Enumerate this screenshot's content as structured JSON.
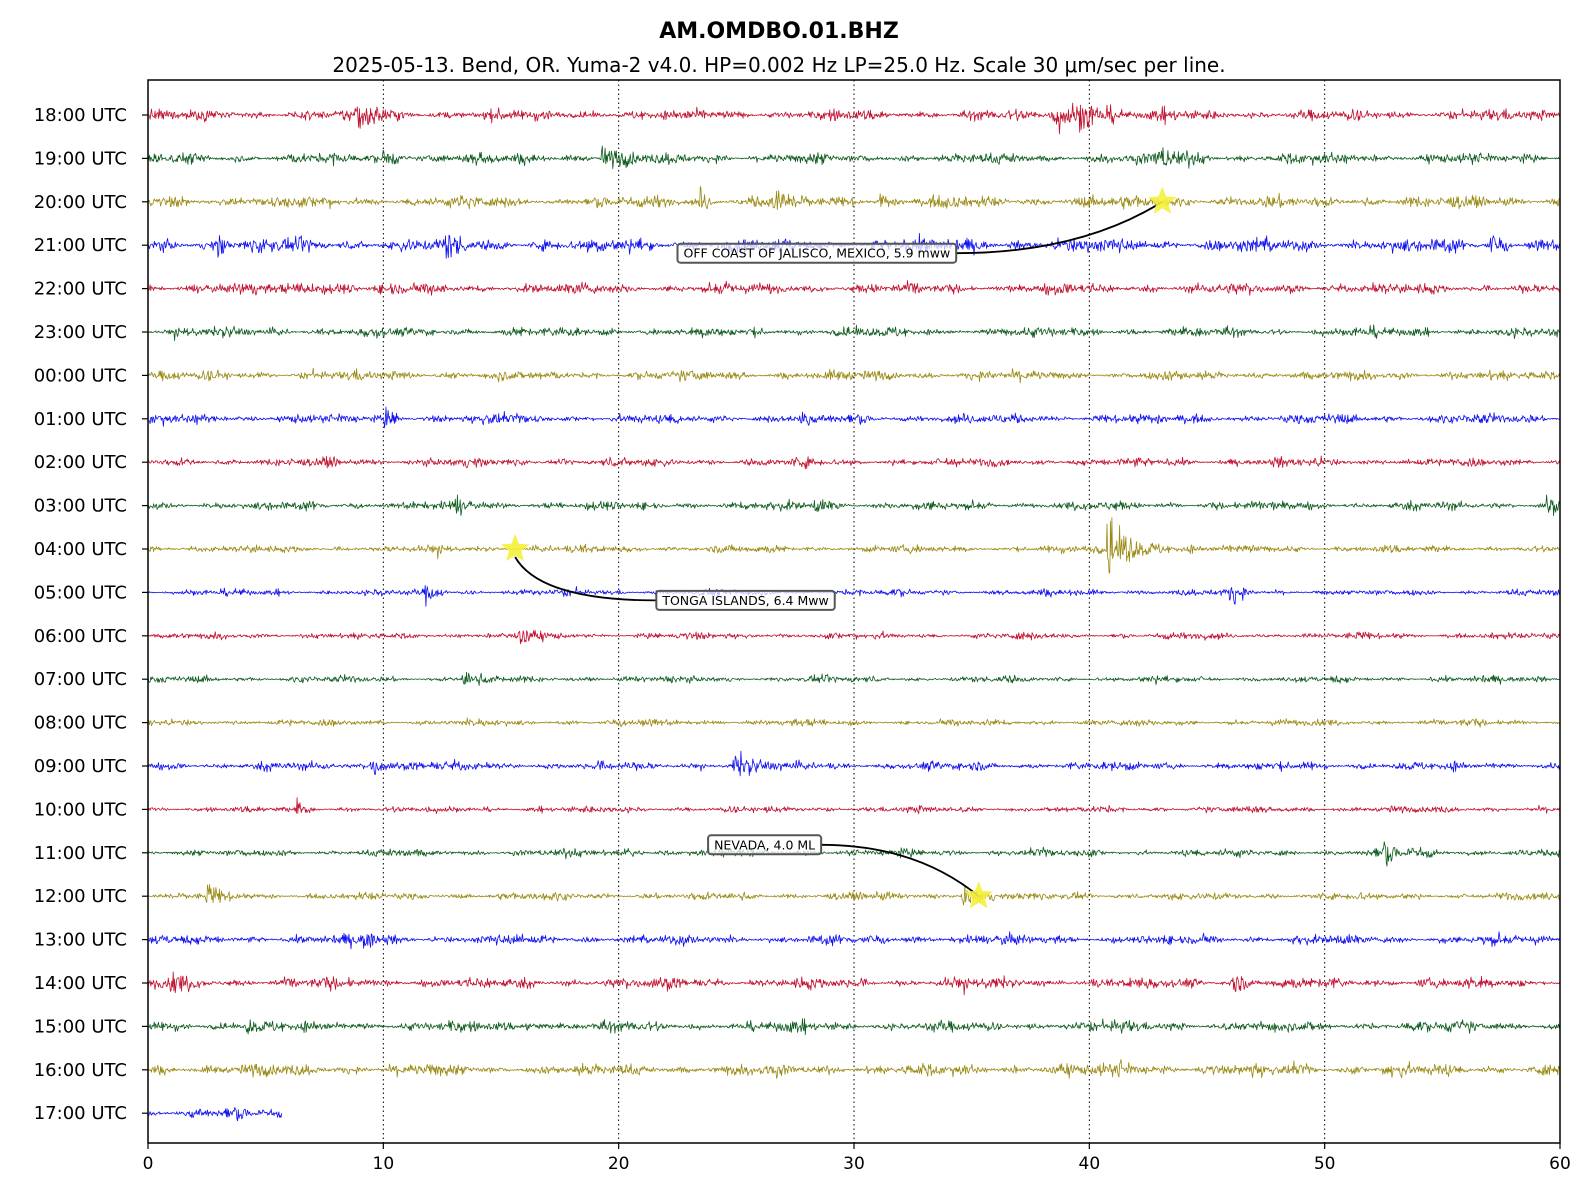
{
  "title": "AM.OMDBO.01.BHZ",
  "subtitle": "2025-05-13. Bend, OR. Yuma-2 v4.0. HP=0.002 Hz LP=25.0 Hz. Scale 30 μm/sec per line.",
  "colors": {
    "red": "#c0102e",
    "green": "#0f5c1f",
    "olive": "#9a8a14",
    "blue": "#1010f0",
    "star": "#f4f03a"
  },
  "chart_data": {
    "type": "line",
    "x_ticks": [
      "0",
      "10",
      "20",
      "30",
      "40",
      "50",
      "60"
    ],
    "xlim": [
      0,
      60
    ],
    "grid": "dotted vertical lines at 10-minute intervals",
    "color_cycle": [
      "red",
      "green",
      "olive",
      "blue"
    ],
    "rows": [
      {
        "label": "18:00 UTC",
        "color": "red",
        "end": 60,
        "amp": 1.0
      },
      {
        "label": "19:00 UTC",
        "color": "green",
        "end": 60,
        "amp": 1.0
      },
      {
        "label": "20:00 UTC",
        "color": "olive",
        "end": 60,
        "amp": 1.1
      },
      {
        "label": "21:00 UTC",
        "color": "blue",
        "end": 60,
        "amp": 1.3
      },
      {
        "label": "22:00 UTC",
        "color": "red",
        "end": 60,
        "amp": 1.0
      },
      {
        "label": "23:00 UTC",
        "color": "green",
        "end": 60,
        "amp": 0.9
      },
      {
        "label": "00:00 UTC",
        "color": "olive",
        "end": 60,
        "amp": 0.9
      },
      {
        "label": "01:00 UTC",
        "color": "blue",
        "end": 60,
        "amp": 0.9
      },
      {
        "label": "02:00 UTC",
        "color": "red",
        "end": 60,
        "amp": 0.8
      },
      {
        "label": "03:00 UTC",
        "color": "green",
        "end": 60,
        "amp": 0.8
      },
      {
        "label": "04:00 UTC",
        "color": "olive",
        "end": 60,
        "amp": 0.7
      },
      {
        "label": "05:00 UTC",
        "color": "blue",
        "end": 60,
        "amp": 0.6
      },
      {
        "label": "06:00 UTC",
        "color": "red",
        "end": 60,
        "amp": 0.6
      },
      {
        "label": "07:00 UTC",
        "color": "green",
        "end": 60,
        "amp": 0.6
      },
      {
        "label": "08:00 UTC",
        "color": "olive",
        "end": 60,
        "amp": 0.6
      },
      {
        "label": "09:00 UTC",
        "color": "blue",
        "end": 60,
        "amp": 0.8
      },
      {
        "label": "10:00 UTC",
        "color": "red",
        "end": 60,
        "amp": 0.6
      },
      {
        "label": "11:00 UTC",
        "color": "green",
        "end": 60,
        "amp": 0.7
      },
      {
        "label": "12:00 UTC",
        "color": "olive",
        "end": 60,
        "amp": 0.7
      },
      {
        "label": "13:00 UTC",
        "color": "blue",
        "end": 60,
        "amp": 0.9
      },
      {
        "label": "14:00 UTC",
        "color": "red",
        "end": 60,
        "amp": 1.0
      },
      {
        "label": "15:00 UTC",
        "color": "green",
        "end": 60,
        "amp": 1.0
      },
      {
        "label": "16:00 UTC",
        "color": "olive",
        "end": 60,
        "amp": 1.1
      },
      {
        "label": "17:00 UTC",
        "color": "blue",
        "end": 5.7,
        "amp": 1.0
      }
    ],
    "bursts": [
      {
        "row": 0,
        "t": 8.8,
        "amp": 2.6,
        "len": 1.0
      },
      {
        "row": 0,
        "t": 38.5,
        "amp": 3.0,
        "len": 1.5
      },
      {
        "row": 0,
        "t": 39.6,
        "amp": 2.2,
        "len": 0.8
      },
      {
        "row": 1,
        "t": 10.0,
        "amp": 1.6,
        "len": 0.6
      },
      {
        "row": 1,
        "t": 19.3,
        "amp": 2.2,
        "len": 0.7
      },
      {
        "row": 1,
        "t": 42.8,
        "amp": 1.8,
        "len": 1.2
      },
      {
        "row": 2,
        "t": 23.4,
        "amp": 2.8,
        "len": 0.3
      },
      {
        "row": 2,
        "t": 26.5,
        "amp": 2.2,
        "len": 0.6
      },
      {
        "row": 2,
        "t": 31.1,
        "amp": 2.5,
        "len": 0.3
      },
      {
        "row": 3,
        "t": 3.0,
        "amp": 2.8,
        "len": 0.2
      },
      {
        "row": 3,
        "t": 12.5,
        "amp": 1.8,
        "len": 0.6
      },
      {
        "row": 3,
        "t": 57.0,
        "amp": 2.6,
        "len": 0.4
      },
      {
        "row": 4,
        "t": 6.5,
        "amp": 1.6,
        "len": 1.2
      },
      {
        "row": 7,
        "t": 10.1,
        "amp": 1.6,
        "len": 0.4
      },
      {
        "row": 7,
        "t": 27.8,
        "amp": 1.6,
        "len": 0.4
      },
      {
        "row": 9,
        "t": 13.1,
        "amp": 1.4,
        "len": 0.4
      },
      {
        "row": 9,
        "t": 28.3,
        "amp": 1.5,
        "len": 0.6
      },
      {
        "row": 9,
        "t": 59.4,
        "amp": 1.8,
        "len": 0.4
      },
      {
        "row": 10,
        "t": 40.8,
        "amp": 7.5,
        "len": 0.5
      },
      {
        "row": 10,
        "t": 41.5,
        "amp": 2.0,
        "len": 1.5
      },
      {
        "row": 11,
        "t": 11.8,
        "amp": 1.8,
        "len": 0.5
      },
      {
        "row": 11,
        "t": 46.0,
        "amp": 2.0,
        "len": 0.4
      },
      {
        "row": 12,
        "t": 15.8,
        "amp": 1.8,
        "len": 0.5
      },
      {
        "row": 13,
        "t": 13.4,
        "amp": 1.6,
        "len": 0.5
      },
      {
        "row": 15,
        "t": 9.5,
        "amp": 2.2,
        "len": 0.6
      },
      {
        "row": 15,
        "t": 24.9,
        "amp": 2.4,
        "len": 0.8
      },
      {
        "row": 16,
        "t": 6.3,
        "amp": 1.8,
        "len": 0.3
      },
      {
        "row": 17,
        "t": 20.3,
        "amp": 1.8,
        "len": 0.4
      },
      {
        "row": 17,
        "t": 52.5,
        "amp": 1.6,
        "len": 1.2
      },
      {
        "row": 18,
        "t": 2.5,
        "amp": 2.2,
        "len": 0.4
      },
      {
        "row": 18,
        "t": 34.6,
        "amp": 2.0,
        "len": 0.7
      },
      {
        "row": 19,
        "t": 9.2,
        "amp": 1.8,
        "len": 0.5
      },
      {
        "row": 20,
        "t": 1.0,
        "amp": 2.0,
        "len": 0.5
      },
      {
        "row": 20,
        "t": 46.0,
        "amp": 1.8,
        "len": 0.5
      },
      {
        "row": 21,
        "t": 4.2,
        "amp": 1.5,
        "len": 0.4
      },
      {
        "row": 21,
        "t": 16.1,
        "amp": 1.6,
        "len": 0.4
      },
      {
        "row": 22,
        "t": 41.2,
        "amp": 1.6,
        "len": 0.8
      },
      {
        "row": 22,
        "t": 52.6,
        "amp": 1.6,
        "len": 0.4
      },
      {
        "row": 23,
        "t": 1.8,
        "amp": 1.4,
        "len": 0.4
      }
    ],
    "events": [
      {
        "label": "OFF COAST OF JALISCO, MEXICO, 5.9 mww",
        "star_row": 2,
        "star_t": 43.1,
        "box_row": 3,
        "box_t": 22.5
      },
      {
        "label": "TONGA ISLANDS, 6.4 Mww",
        "star_row": 10,
        "star_t": 15.6,
        "box_row": 11,
        "box_t": 21.6
      },
      {
        "label": "NEVADA, 4.0 ML",
        "star_row": 18,
        "star_t": 35.3,
        "box_row": 17,
        "box_t": 23.8
      }
    ]
  }
}
